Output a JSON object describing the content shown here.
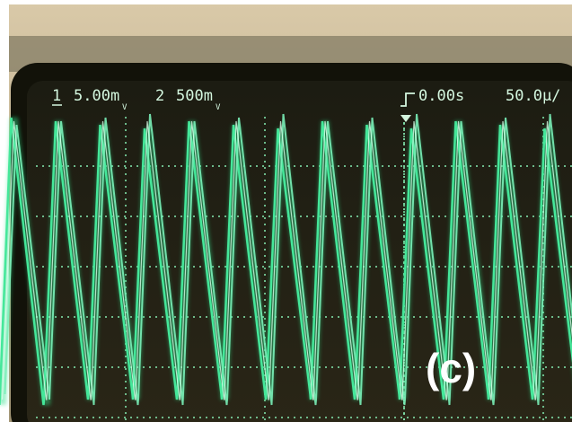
{
  "readout": {
    "channel_1": {
      "number": "1",
      "scale": "5.00m",
      "unit": "V"
    },
    "channel_2": {
      "number": "2",
      "scale": "500m",
      "unit": "V"
    },
    "trigger_delay": "0.00s",
    "timebase": "50.0µ/"
  },
  "panel_label": "(c)"
}
